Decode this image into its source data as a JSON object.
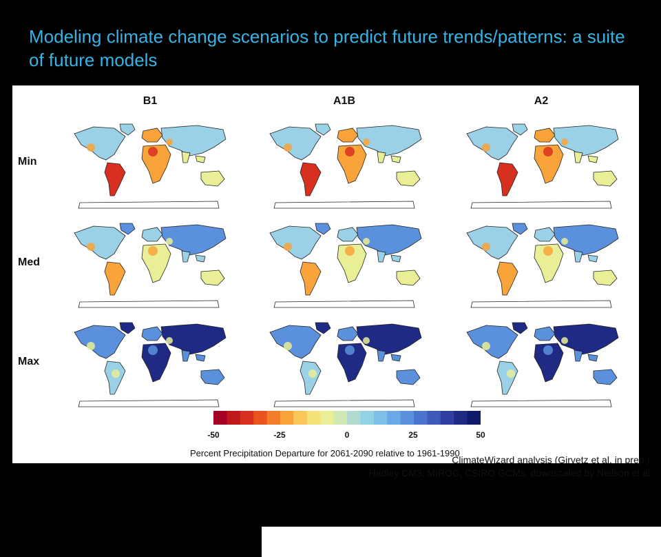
{
  "slide": {
    "title": "Modeling climate change scenarios to predict future trends/patterns: a suite of future models"
  },
  "figure": {
    "columns": [
      "B1",
      "A1B",
      "A2"
    ],
    "rows": [
      "Min",
      "Med",
      "Max"
    ],
    "legend": {
      "ticks": [
        "-50",
        "-25",
        "0",
        "25",
        "50"
      ],
      "title": "Percent Precipitation Departure for 2061-2090 relative to 1961-1990",
      "colors": [
        "#a50026",
        "#c0171b",
        "#d7301f",
        "#e8531f",
        "#f47d2a",
        "#f9a43b",
        "#fcc75a",
        "#f7e27a",
        "#e9ef97",
        "#cfe8b5",
        "#b0dccf",
        "#93d1e5",
        "#7ec0ea",
        "#6aa9e6",
        "#5b90dc",
        "#4b74cc",
        "#3e5ab8",
        "#2f3fa0",
        "#1f2a85",
        "#0f1a6a"
      ]
    },
    "credit_line1": "ClimateWizard analysis (Girvetz et al. in prep.),",
    "credit_line2": "Hadley CM3, MIROC, CSIRO GCMs, downscaled by Neilson et al."
  },
  "map_palette": {
    "ocean": "#ffffff",
    "outline": "#222222",
    "dry": "#d7301f",
    "dryish": "#f9a43b",
    "neutral": "#e9ef97",
    "wetish": "#9ad1e6",
    "wet": "#5b90dc",
    "verywet": "#1f2a85"
  }
}
